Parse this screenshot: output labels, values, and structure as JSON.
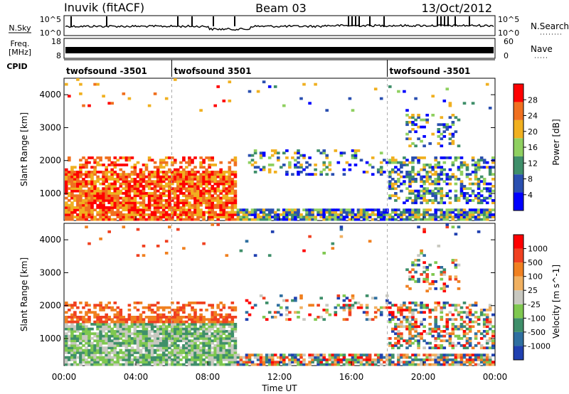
{
  "header": {
    "station": "Inuvik (fitACF)",
    "beam": "Beam 03",
    "date": "13/Oct/2012"
  },
  "side_labels": {
    "nsky": "N.Sky",
    "freq": "Freq.",
    "mhz": "[MHz]",
    "cpid": "CPID",
    "nsearch": "N.Search",
    "nave": "Nave"
  },
  "strip_ticks": {
    "noise_left": [
      "10^5",
      "10^0"
    ],
    "noise_right": [
      "10^5",
      "10^0"
    ],
    "freq_left": [
      "18",
      "8"
    ],
    "freq_right": [
      "60",
      "0"
    ]
  },
  "cpid_segments": [
    {
      "label": "twofsound -3501",
      "start_hour": 0
    },
    {
      "label": "twofsound 3501",
      "start_hour": 6
    },
    {
      "label": "twofsound -3501",
      "start_hour": 18
    }
  ],
  "chart_data": [
    {
      "type": "heatmap",
      "quantity": "power",
      "ylabel": "Slant Range [km]",
      "xlabel": "",
      "xlim_hours": [
        0,
        24
      ],
      "ylim": [
        180,
        4500
      ],
      "yticks": [
        "1000",
        "2000",
        "3000",
        "4000"
      ],
      "colorbar": {
        "label": "Power [dB]",
        "ticks": [
          "28",
          "24",
          "20",
          "16",
          "12",
          "8",
          "4"
        ],
        "colors": [
          "#0000ff",
          "#2a4fb0",
          "#3f8f6a",
          "#8fd060",
          "#f0b020",
          "#f07020",
          "#ff0000"
        ]
      }
    },
    {
      "type": "heatmap",
      "quantity": "velocity",
      "ylabel": "Slant Range [km]",
      "xlabel": "Time UT",
      "xlim_hours": [
        0,
        24
      ],
      "ylim": [
        180,
        4500
      ],
      "yticks": [
        "1000",
        "2000",
        "3000",
        "4000"
      ],
      "xticks": [
        "00:00",
        "04:00",
        "08:00",
        "12:00",
        "16:00",
        "20:00",
        "00:00"
      ],
      "colorbar": {
        "label": "Velocity [m s^-1]",
        "ticks": [
          "1000",
          "500",
          "100",
          "25",
          "-25",
          "-100",
          "-500",
          "-1000"
        ],
        "colors": [
          "#2040b0",
          "#2f6fa0",
          "#3f8f6a",
          "#7fc850",
          "#c8c8c0",
          "#f0b060",
          "#f08020",
          "#f04020",
          "#ff0000"
        ]
      }
    }
  ]
}
